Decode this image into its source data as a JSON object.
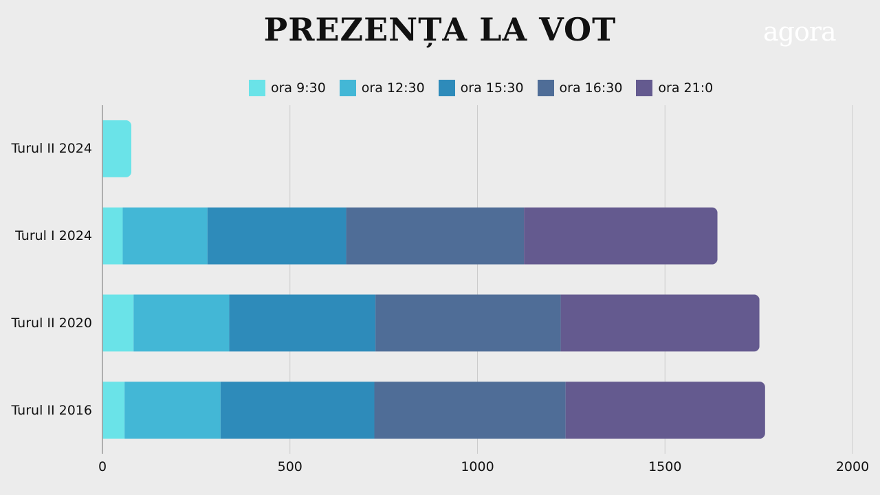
{
  "header": {
    "title": "PREZENȚA LA VOT",
    "logo": "agora"
  },
  "colors": {
    "ora_9_30": "#6ae3e8",
    "ora_12_30": "#43b7d6",
    "ora_15_30": "#2e8bba",
    "ora_16_30": "#4f6d97",
    "ora_21_0": "#645a8f",
    "grid": "#cccccc",
    "axis": "#999999",
    "background": "#ececec"
  },
  "legend": {
    "items": [
      {
        "label": "ora 9:30"
      },
      {
        "label": "ora 12:30"
      },
      {
        "label": "ora 15:30"
      },
      {
        "label": "ora 16:30"
      },
      {
        "label": "ora 21:0"
      }
    ]
  },
  "chart_data": {
    "type": "bar",
    "orientation": "horizontal",
    "stacked": true,
    "title": "PREZENȚA LA VOT",
    "xlabel": "",
    "ylabel": "",
    "xlim": [
      0,
      2000
    ],
    "xticks": [
      "0",
      "500",
      "1000",
      "1500",
      "2000"
    ],
    "grid": true,
    "legend_position": "top",
    "categories": [
      "Turul II 2024",
      "Turul I 2024",
      "Turul II 2020",
      "Turul II 2016"
    ],
    "series": [
      {
        "name": "ora 9:30",
        "values": [
          77,
          54,
          83,
          59
        ]
      },
      {
        "name": "ora 12:30",
        "values": [
          0,
          226,
          255,
          256
        ]
      },
      {
        "name": "ora 15:30",
        "values": [
          0,
          370,
          390,
          410
        ]
      },
      {
        "name": "ora 16:30",
        "values": [
          0,
          474,
          494,
          510
        ]
      },
      {
        "name": "ora 21:0",
        "values": [
          0,
          516,
          530,
          532
        ]
      }
    ]
  }
}
